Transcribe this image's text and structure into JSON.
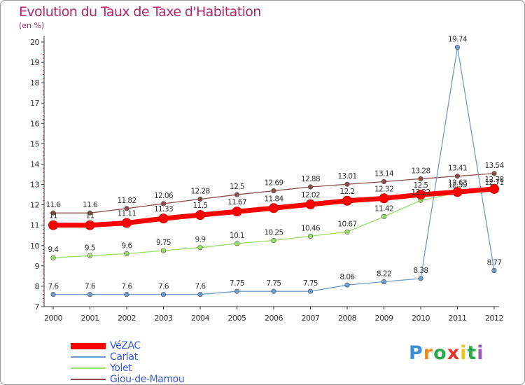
{
  "chart_data": {
    "type": "line",
    "title": "Evolution du Taux de Taxe d'Habitation",
    "unit_label": "(en %)",
    "categories": [
      "2000",
      "2001",
      "2002",
      "2003",
      "2004",
      "2005",
      "2006",
      "2007",
      "2008",
      "2009",
      "2010",
      "2011",
      "2012"
    ],
    "ylim": [
      7,
      20
    ],
    "yticks": [
      "7",
      "8",
      "9",
      "10",
      "11",
      "12",
      "13",
      "14",
      "15",
      "16",
      "17",
      "18",
      "19",
      "20"
    ],
    "grid": false,
    "legend_position": "bottom-left",
    "series": [
      {
        "name": "VéZAC",
        "color": "#ff0000",
        "width": 7,
        "values": [
          11,
          11,
          11.11,
          11.33,
          11.5,
          11.67,
          11.84,
          12.02,
          12.2,
          12.32,
          12.5,
          12.63,
          12.78
        ],
        "labels": [
          "11",
          "11",
          "11.11",
          "11.33",
          "11.5",
          "11.67",
          "11.84",
          "12.02",
          "12.2",
          "12.32",
          "12.5",
          "12.63",
          "12.78"
        ]
      },
      {
        "name": "Carlat",
        "color": "#6f9ccc",
        "width": 1.3,
        "values": [
          7.6,
          7.6,
          7.6,
          7.6,
          7.6,
          7.75,
          7.75,
          7.75,
          8.06,
          8.22,
          8.38,
          19.74,
          8.77
        ],
        "labels": [
          "7.6",
          "7.6",
          "7.6",
          "7.6",
          "7.6",
          "7.75",
          "7.75",
          "7.75",
          "8.06",
          "8.22",
          "8.38",
          "19.74",
          "8.77"
        ]
      },
      {
        "name": "Yolet",
        "color": "#99dd66",
        "width": 1.3,
        "values": [
          9.4,
          9.5,
          9.6,
          9.75,
          9.9,
          10.1,
          10.25,
          10.46,
          10.67,
          11.42,
          12.22,
          12.59,
          12.71
        ],
        "labels": [
          "9.4",
          "9.5",
          "9.6",
          "9.75",
          "9.9",
          "10.1",
          "10.25",
          "10.46",
          "10.67",
          "11.42",
          "12.22",
          "12.59",
          "12.71"
        ]
      },
      {
        "name": "Giou-de-Mamou",
        "color": "#8b4a4a",
        "width": 1.3,
        "values": [
          11.6,
          11.6,
          11.82,
          12.06,
          12.28,
          12.5,
          12.69,
          12.88,
          13.01,
          13.14,
          13.28,
          13.41,
          13.54
        ],
        "labels": [
          "11.6",
          "11.6",
          "11.82",
          "12.06",
          "12.28",
          "12.5",
          "12.69",
          "12.88",
          "13.01",
          "13.14",
          "13.28",
          "13.41",
          "13.54"
        ]
      }
    ]
  },
  "brand": {
    "letters": [
      "P",
      "r",
      "o",
      "x",
      "i",
      "t",
      "i"
    ],
    "colors": [
      "#3a8fd6",
      "#f08a1c",
      "#2ba84a",
      "#e6372e",
      "#f3c21b",
      "#2ba84a",
      "#9b5bb5"
    ]
  }
}
